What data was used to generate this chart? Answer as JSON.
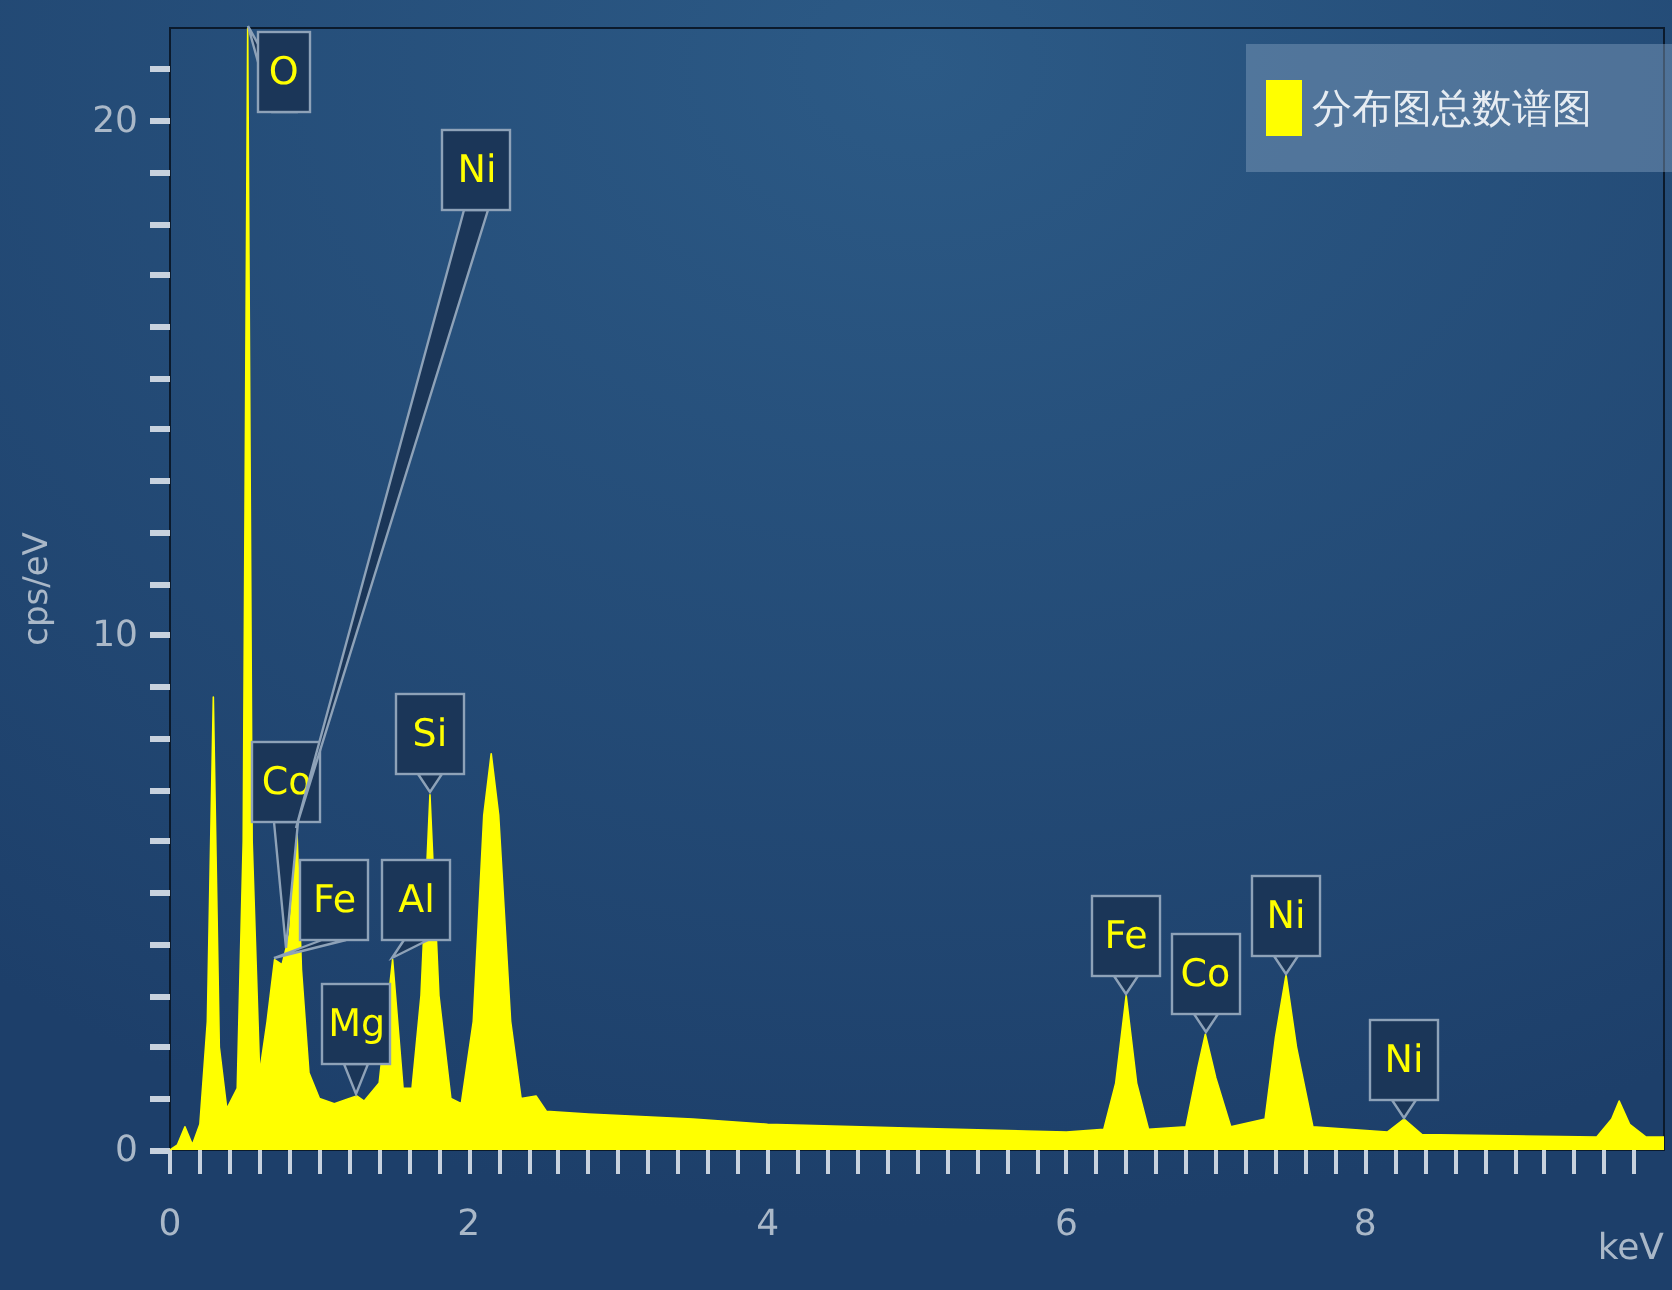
{
  "chart_data": {
    "type": "area",
    "xlabel": "keV",
    "ylabel": "cps/eV",
    "legend": "top right",
    "grid": false,
    "marker": "none",
    "xlim": [
      0,
      10
    ],
    "ylim": [
      0,
      21.8
    ],
    "xticks": [
      0,
      {
        "value": 0.2,
        "label": null
      },
      {
        "value": 0.4,
        "label": null
      },
      {
        "value": 0.6,
        "label": null
      },
      {
        "value": 0.8,
        "label": null
      },
      {
        "value": 1,
        "label": null
      },
      {
        "value": 1.2,
        "label": null
      },
      {
        "value": 1.4,
        "label": null
      },
      {
        "value": 1.6,
        "label": null
      },
      {
        "value": 1.8,
        "label": null
      },
      2,
      {
        "value": 2.2,
        "label": null
      },
      {
        "value": 2.4,
        "label": null
      },
      {
        "value": 2.6,
        "label": null
      },
      {
        "value": 2.8,
        "label": null
      },
      {
        "value": 3,
        "label": null
      },
      {
        "value": 3.2,
        "label": null
      },
      {
        "value": 3.4,
        "label": null
      },
      {
        "value": 3.6,
        "label": null
      },
      {
        "value": 3.8,
        "label": null
      },
      4,
      {
        "value": 4.2,
        "label": null
      },
      {
        "value": 4.4,
        "label": null
      },
      {
        "value": 4.6,
        "label": null
      },
      {
        "value": 4.8,
        "label": null
      },
      {
        "value": 5,
        "label": null
      },
      {
        "value": 5.2,
        "label": null
      },
      {
        "value": 5.4,
        "label": null
      },
      {
        "value": 5.6,
        "label": null
      },
      {
        "value": 5.8,
        "label": null
      },
      6,
      {
        "value": 6.2,
        "label": null
      },
      {
        "value": 6.4,
        "label": null
      },
      {
        "value": 6.6,
        "label": null
      },
      {
        "value": 6.8,
        "label": null
      },
      {
        "value": 7,
        "label": null
      },
      {
        "value": 7.2,
        "label": null
      },
      {
        "value": 7.4,
        "label": null
      },
      {
        "value": 7.6,
        "label": null
      },
      {
        "value": 7.8,
        "label": null
      },
      8,
      {
        "value": 8.2,
        "label": null
      },
      {
        "value": 8.4,
        "label": null
      },
      {
        "value": 8.6,
        "label": null
      },
      {
        "value": 8.8,
        "label": null
      },
      {
        "value": 9,
        "label": null
      },
      {
        "value": 9.2,
        "label": null
      },
      {
        "value": 9.4,
        "label": null
      },
      {
        "value": 9.6,
        "label": null
      },
      {
        "value": 9.8,
        "label": null
      }
    ],
    "yticks": [
      0,
      {
        "value": 1,
        "label": null
      },
      {
        "value": 2,
        "label": null
      },
      {
        "value": 3,
        "label": null
      },
      {
        "value": 4,
        "label": null
      },
      {
        "value": 5,
        "label": null
      },
      {
        "value": 6,
        "label": null
      },
      {
        "value": 7,
        "label": null
      },
      {
        "value": 8,
        "label": null
      },
      {
        "value": 9,
        "label": null
      },
      10,
      {
        "value": 11,
        "label": null
      },
      {
        "value": 12,
        "label": null
      },
      {
        "value": 13,
        "label": null
      },
      {
        "value": 14,
        "label": null
      },
      {
        "value": 15,
        "label": null
      },
      {
        "value": 16,
        "label": null
      },
      {
        "value": 17,
        "label": null
      },
      {
        "value": 18,
        "label": null
      },
      {
        "value": 19,
        "label": null
      },
      20,
      {
        "value": 21,
        "label": null
      }
    ],
    "series": [
      {
        "name": "分布图总数谱图",
        "color": "#ffff00",
        "x": [
          0,
          0.05,
          0.1,
          0.15,
          0.2,
          0.25,
          0.29,
          0.33,
          0.38,
          0.45,
          0.49,
          0.52,
          0.55,
          0.6,
          0.65,
          0.7,
          0.75,
          0.8,
          0.85,
          0.88,
          0.93,
          1.0,
          1.1,
          1.2,
          1.25,
          1.3,
          1.4,
          1.49,
          1.56,
          1.62,
          1.68,
          1.74,
          1.8,
          1.88,
          1.95,
          2.03,
          2.1,
          2.15,
          2.2,
          2.28,
          2.35,
          2.45,
          2.52,
          2.8,
          3.5,
          4,
          5,
          6,
          6.25,
          6.33,
          6.4,
          6.47,
          6.55,
          6.8,
          6.88,
          6.93,
          7.0,
          7.1,
          7.33,
          7.4,
          7.47,
          7.54,
          7.65,
          8.15,
          8.26,
          8.38,
          9.55,
          9.65,
          9.7,
          9.77,
          9.88,
          10
        ],
        "values": [
          0,
          0.1,
          0.45,
          0.1,
          0.5,
          2.5,
          8.8,
          2,
          0.8,
          1.2,
          6,
          21.8,
          6,
          1.5,
          2.5,
          3.7,
          3.6,
          4.2,
          6.2,
          3.5,
          1.5,
          1.0,
          0.9,
          1.0,
          1.05,
          0.95,
          1.3,
          3.7,
          1.2,
          1.2,
          3,
          6.9,
          3,
          1.0,
          0.9,
          2.5,
          6.5,
          7.7,
          6.5,
          2.5,
          1.0,
          1.05,
          0.75,
          0.7,
          0.6,
          0.5,
          0.42,
          0.35,
          0.4,
          1.3,
          3.0,
          1.3,
          0.4,
          0.45,
          1.6,
          2.25,
          1.4,
          0.45,
          0.6,
          2.2,
          3.4,
          2,
          0.45,
          0.35,
          0.6,
          0.3,
          0.25,
          0.6,
          0.95,
          0.5,
          0.25,
          0.25
        ]
      }
    ],
    "annotations": [
      {
        "text": "O",
        "x": 0.52,
        "y": 21.8
      },
      {
        "text": "Fe",
        "x": 0.7,
        "y": 3.7
      },
      {
        "text": "Co",
        "x": 0.78,
        "y": 3.9
      },
      {
        "text": "Ni",
        "x": 0.85,
        "y": 6.2
      },
      {
        "text": "Mg",
        "x": 1.25,
        "y": 1.05
      },
      {
        "text": "Al",
        "x": 1.49,
        "y": 3.7
      },
      {
        "text": "Si",
        "x": 1.74,
        "y": 6.9
      },
      {
        "text": "Fe",
        "x": 6.4,
        "y": 3.0
      },
      {
        "text": "Co",
        "x": 6.93,
        "y": 2.25
      },
      {
        "text": "Ni",
        "x": 7.47,
        "y": 3.4
      },
      {
        "text": "Ni",
        "x": 8.26,
        "y": 0.6
      }
    ]
  }
}
